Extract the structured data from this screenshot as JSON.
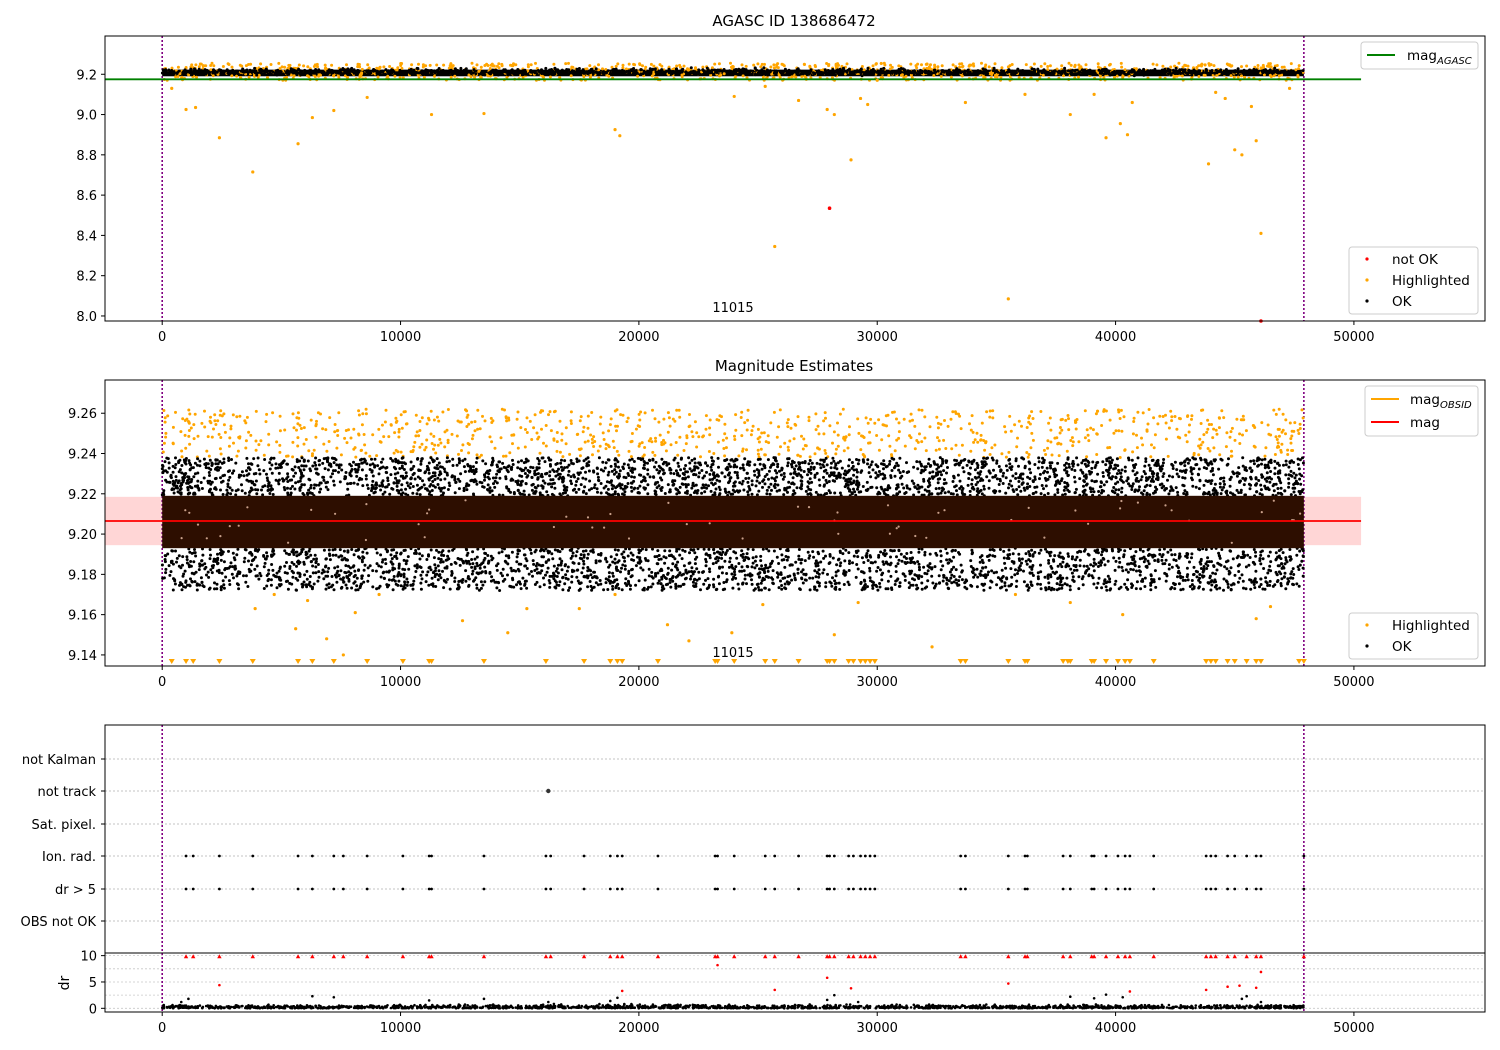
{
  "chart_data": [
    {
      "type": "scatter",
      "title": "AGASC ID 138686472",
      "xlim": [
        -2400,
        55500
      ],
      "ylim": [
        7.975,
        9.39
      ],
      "xticks": [
        0,
        10000,
        20000,
        30000,
        40000,
        50000
      ],
      "yticks": [
        8.0,
        8.2,
        8.4,
        8.6,
        8.8,
        9.0,
        9.2
      ],
      "ytick_labels": [
        "8.0",
        "8.2",
        "8.4",
        "8.6",
        "8.8",
        "9.0",
        "9.2"
      ],
      "vlines": [
        0,
        47900
      ],
      "annotation": {
        "text": "11015",
        "x": 23800
      },
      "hlines": [
        {
          "name": "mag_AGASC",
          "y": 9.175,
          "x_end": 50300,
          "color": "#008000"
        }
      ],
      "legend": {
        "placement": "top-right",
        "entries": [
          {
            "label": "mag",
            "sub": "AGASC",
            "color": "#008000"
          }
        ]
      },
      "legend2": {
        "placement": "bottom-right",
        "entries": [
          {
            "label": "not OK",
            "color": "#ff0000"
          },
          {
            "label": "Highlighted",
            "color": "#ffa500"
          },
          {
            "label": "OK",
            "color": "#000000"
          }
        ]
      },
      "ok_band": {
        "x_range": [
          0,
          47900
        ],
        "y_range": [
          9.18,
          9.235
        ]
      },
      "not_ok_points": [
        [
          28000,
          8.535
        ],
        [
          46100,
          7.975
        ]
      ],
      "highlighted_points": [
        [
          400,
          9.13
        ],
        [
          1000,
          9.025
        ],
        [
          1400,
          9.035
        ],
        [
          2400,
          8.885
        ],
        [
          3800,
          8.715
        ],
        [
          5700,
          8.855
        ],
        [
          6300,
          8.985
        ],
        [
          7200,
          9.02
        ],
        [
          8600,
          9.085
        ],
        [
          11300,
          9.0
        ],
        [
          13500,
          9.005
        ],
        [
          19000,
          8.925
        ],
        [
          19200,
          8.895
        ],
        [
          24000,
          9.09
        ],
        [
          25300,
          9.14
        ],
        [
          25700,
          8.345
        ],
        [
          26700,
          9.07
        ],
        [
          27900,
          9.025
        ],
        [
          28200,
          9.0
        ],
        [
          28900,
          8.775
        ],
        [
          29300,
          9.08
        ],
        [
          29600,
          9.05
        ],
        [
          30000,
          9.17
        ],
        [
          33700,
          9.06
        ],
        [
          35500,
          8.085
        ],
        [
          36200,
          9.1
        ],
        [
          38100,
          9.0
        ],
        [
          39100,
          9.1
        ],
        [
          39600,
          8.885
        ],
        [
          40200,
          8.955
        ],
        [
          40500,
          8.9
        ],
        [
          40700,
          9.06
        ],
        [
          43900,
          8.755
        ],
        [
          44200,
          9.11
        ],
        [
          44600,
          9.08
        ],
        [
          45000,
          8.825
        ],
        [
          45300,
          8.8
        ],
        [
          45700,
          9.04
        ],
        [
          45900,
          8.87
        ],
        [
          46100,
          8.41
        ],
        [
          47300,
          9.13
        ]
      ]
    },
    {
      "type": "scatter",
      "title": "Magnitude Estimates",
      "xlim": [
        -2400,
        55500
      ],
      "ylim": [
        9.1345,
        9.2765
      ],
      "xticks": [
        0,
        10000,
        20000,
        30000,
        40000,
        50000
      ],
      "yticks": [
        9.14,
        9.16,
        9.18,
        9.2,
        9.22,
        9.24,
        9.26
      ],
      "ytick_labels": [
        "9.14",
        "9.16",
        "9.18",
        "9.20",
        "9.22",
        "9.24",
        "9.26"
      ],
      "vlines": [
        0,
        47900
      ],
      "annotation": {
        "text": "11015",
        "x": 23800
      },
      "mean_line": {
        "name": "mag",
        "y": 9.2065,
        "x_end": 50300,
        "color": "#ff0000"
      },
      "std_band": {
        "y_range": [
          9.1945,
          9.2185
        ],
        "color": "#ffd6d6"
      },
      "legend": {
        "placement": "top-right",
        "entries": [
          {
            "label": "mag",
            "sub": "OBSID",
            "color": "#ffa500"
          },
          {
            "label": "mag",
            "sub": "",
            "color": "#ff0000"
          }
        ]
      },
      "legend2": {
        "placement": "bottom-right",
        "entries": [
          {
            "label": "Highlighted",
            "color": "#ffa500"
          },
          {
            "label": "OK",
            "color": "#000000"
          }
        ]
      },
      "ok_band": {
        "x_range": [
          0,
          47900
        ],
        "y_range": [
          9.172,
          9.238
        ]
      },
      "dense_band": {
        "y_range": [
          9.193,
          9.219
        ],
        "color": "#2d0e00"
      },
      "highlight_band": {
        "y_range": [
          9.238,
          9.262
        ]
      },
      "highlighted_low_points": [
        [
          3900,
          9.163
        ],
        [
          4700,
          9.17
        ],
        [
          5600,
          9.153
        ],
        [
          6100,
          9.167
        ],
        [
          6900,
          9.148
        ],
        [
          7600,
          9.14
        ],
        [
          8100,
          9.161
        ],
        [
          9100,
          9.17
        ],
        [
          12600,
          9.157
        ],
        [
          14500,
          9.151
        ],
        [
          15300,
          9.163
        ],
        [
          17500,
          9.163
        ],
        [
          19000,
          9.17
        ],
        [
          21200,
          9.155
        ],
        [
          22100,
          9.147
        ],
        [
          23900,
          9.151
        ],
        [
          25200,
          9.165
        ],
        [
          28200,
          9.15
        ],
        [
          29200,
          9.166
        ],
        [
          32300,
          9.144
        ],
        [
          35800,
          9.17
        ],
        [
          38100,
          9.166
        ],
        [
          40300,
          9.16
        ],
        [
          45900,
          9.158
        ],
        [
          46500,
          9.164
        ]
      ],
      "clipped_markers_x": [
        400,
        1000,
        1300,
        2400,
        3800,
        5700,
        6300,
        7200,
        8600,
        10100,
        11200,
        11300,
        13500,
        16100,
        17700,
        18800,
        19100,
        19300,
        20800,
        23200,
        23300,
        24000,
        25300,
        25700,
        26700,
        27900,
        28000,
        28200,
        28800,
        29000,
        29300,
        29500,
        29700,
        29900,
        33500,
        33700,
        35500,
        36200,
        36300,
        37800,
        38000,
        38100,
        39000,
        39100,
        39600,
        40100,
        40400,
        40600,
        41600,
        43800,
        44000,
        44200,
        44700,
        45000,
        45500,
        45900,
        46100,
        47700,
        47900
      ]
    },
    {
      "type": "scatter",
      "title": "",
      "xlim": [
        -2400,
        55500
      ],
      "xticks": [
        0,
        10000,
        20000,
        30000,
        40000,
        50000
      ],
      "categories": [
        "not Kalman",
        "not track",
        "Sat. pixel.",
        "Ion. rad.",
        "dr > 5",
        "OBS not OK"
      ],
      "vlines": [
        0,
        47900
      ],
      "flag_points": {
        "not track": [
          16200
        ],
        "Ion. rad.": [
          1000,
          1300,
          2400,
          3800,
          5700,
          6300,
          7200,
          7600,
          8600,
          10100,
          11200,
          11300,
          13500,
          16100,
          16300,
          17700,
          18800,
          19100,
          19300,
          20800,
          23200,
          23300,
          24000,
          25300,
          25700,
          26700,
          27900,
          28000,
          28200,
          28800,
          29000,
          29300,
          29500,
          29700,
          29900,
          33500,
          33700,
          35500,
          36200,
          36300,
          37800,
          38100,
          39000,
          39100,
          39600,
          40100,
          40400,
          40600,
          41600,
          43800,
          44000,
          44200,
          44700,
          45000,
          45500,
          45900,
          46100,
          47900
        ],
        "dr > 5": [
          1000,
          1300,
          2400,
          3800,
          5700,
          6300,
          7200,
          7600,
          8600,
          10100,
          11200,
          11300,
          13500,
          16100,
          16300,
          17700,
          18800,
          19100,
          19300,
          20800,
          23200,
          23300,
          24000,
          25300,
          25700,
          26700,
          27900,
          28000,
          28200,
          28800,
          29000,
          29300,
          29500,
          29700,
          29900,
          33500,
          33700,
          35500,
          36200,
          36300,
          37800,
          38100,
          39000,
          39100,
          39600,
          40100,
          40400,
          40600,
          41600,
          43800,
          44000,
          44200,
          44700,
          45000,
          45500,
          45900,
          46100,
          47900
        ]
      }
    },
    {
      "type": "scatter",
      "ylabel": "dr",
      "xlim": [
        -2400,
        55500
      ],
      "ylim": [
        -0.7,
        10.5
      ],
      "xticks": [
        0,
        10000,
        20000,
        30000,
        40000,
        50000
      ],
      "xtick_labels": [
        "0",
        "10000",
        "20000",
        "30000",
        "40000",
        "50000"
      ],
      "yticks": [
        0,
        5,
        10
      ],
      "ytick_labels": [
        "0",
        "5",
        "10"
      ],
      "vlines": [
        0,
        47900
      ],
      "ok_band": {
        "x_range": [
          0,
          47900
        ],
        "y_range": [
          0,
          0.9
        ]
      },
      "high_points": [
        [
          1000,
          9.8
        ],
        [
          1300,
          9.8
        ],
        [
          2400,
          9.8
        ],
        [
          3800,
          9.8
        ],
        [
          5700,
          9.8
        ],
        [
          6300,
          9.8
        ],
        [
          7200,
          9.8
        ],
        [
          7600,
          9.8
        ],
        [
          8600,
          9.8
        ],
        [
          10100,
          9.8
        ],
        [
          11200,
          9.8
        ],
        [
          11300,
          9.8
        ],
        [
          13500,
          9.8
        ],
        [
          16100,
          9.8
        ],
        [
          16300,
          9.8
        ],
        [
          17700,
          9.8
        ],
        [
          18800,
          9.8
        ],
        [
          19100,
          9.8
        ],
        [
          19300,
          9.8
        ],
        [
          20800,
          9.8
        ],
        [
          23200,
          9.8
        ],
        [
          23300,
          9.8
        ],
        [
          24000,
          9.8
        ],
        [
          25300,
          9.8
        ],
        [
          25700,
          9.8
        ],
        [
          26700,
          9.8
        ],
        [
          27900,
          9.8
        ],
        [
          28000,
          9.8
        ],
        [
          28200,
          9.8
        ],
        [
          28800,
          9.8
        ],
        [
          29000,
          9.8
        ],
        [
          29300,
          9.8
        ],
        [
          29500,
          9.8
        ],
        [
          29700,
          9.8
        ],
        [
          29900,
          9.8
        ],
        [
          33500,
          9.8
        ],
        [
          33700,
          9.8
        ],
        [
          35500,
          9.8
        ],
        [
          36200,
          9.8
        ],
        [
          36300,
          9.8
        ],
        [
          37800,
          9.8
        ],
        [
          38100,
          9.8
        ],
        [
          39000,
          9.8
        ],
        [
          39100,
          9.8
        ],
        [
          39600,
          9.8
        ],
        [
          40100,
          9.8
        ],
        [
          40400,
          9.8
        ],
        [
          40600,
          9.8
        ],
        [
          41600,
          9.8
        ],
        [
          43800,
          9.8
        ],
        [
          44000,
          9.8
        ],
        [
          44200,
          9.8
        ],
        [
          44700,
          9.8
        ],
        [
          45000,
          9.8
        ],
        [
          45500,
          9.8
        ],
        [
          45900,
          9.8
        ],
        [
          46100,
          9.8
        ],
        [
          47900,
          9.8
        ],
        [
          2400,
          4.4
        ],
        [
          23300,
          8.2
        ],
        [
          25700,
          3.5
        ],
        [
          27900,
          5.8
        ],
        [
          28900,
          3.8
        ],
        [
          35500,
          4.7
        ],
        [
          19300,
          3.3
        ],
        [
          40600,
          3.2
        ],
        [
          43800,
          3.5
        ],
        [
          44700,
          4.1
        ],
        [
          45200,
          4.3
        ],
        [
          45900,
          3.9
        ],
        [
          46100,
          6.9
        ]
      ],
      "low_outliers": [
        [
          800,
          1.2
        ],
        [
          1100,
          1.8
        ],
        [
          6300,
          2.3
        ],
        [
          7200,
          2.1
        ],
        [
          11200,
          1.5
        ],
        [
          13500,
          1.8
        ],
        [
          16200,
          1.2
        ],
        [
          18800,
          1.4
        ],
        [
          19100,
          2.0
        ],
        [
          27900,
          1.6
        ],
        [
          28200,
          2.5
        ],
        [
          29200,
          1.2
        ],
        [
          38100,
          2.2
        ],
        [
          39100,
          1.9
        ],
        [
          39600,
          2.6
        ],
        [
          40300,
          2.1
        ],
        [
          45300,
          1.8
        ],
        [
          45500,
          2.3
        ],
        [
          46100,
          1.2
        ]
      ]
    }
  ]
}
